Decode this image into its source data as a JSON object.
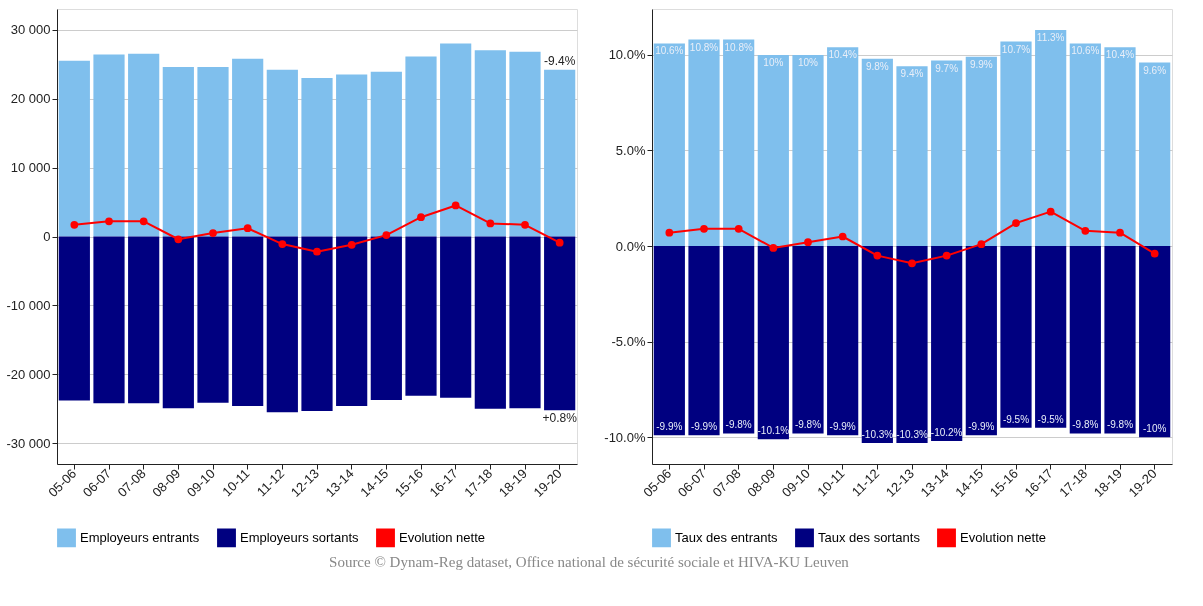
{
  "chart_data": [
    {
      "type": "bar",
      "stacked": true,
      "categories": [
        "05-06",
        "06-07",
        "07-08",
        "08-09",
        "09-10",
        "10-11",
        "11-12",
        "12-13",
        "13-14",
        "14-15",
        "15-16",
        "16-17",
        "17-18",
        "18-19",
        "19-20"
      ],
      "series": [
        {
          "name": "Employeurs entrants",
          "color": "#7fbfed",
          "values": [
            25500,
            26400,
            26500,
            24600,
            24600,
            25800,
            24200,
            23000,
            23500,
            23900,
            26100,
            28000,
            27000,
            26800,
            24200
          ]
        },
        {
          "name": "Employeurs sortants",
          "color": "#000080",
          "values": [
            -23800,
            -24200,
            -24200,
            -24900,
            -24100,
            -24600,
            -25500,
            -25300,
            -24600,
            -23700,
            -23100,
            -23400,
            -25000,
            -24900,
            -25200
          ]
        },
        {
          "name": "Evolution nette",
          "type": "line",
          "color": "#ff0000",
          "values": [
            1700,
            2200,
            2200,
            -400,
            500,
            1200,
            -1100,
            -2200,
            -1200,
            200,
            2800,
            4500,
            1900,
            1700,
            -900
          ]
        }
      ],
      "ylim": [
        -33000,
        33000
      ],
      "yticks": [
        {
          "value": -30000,
          "label": "-30 000"
        },
        {
          "value": -20000,
          "label": "-20 000"
        },
        {
          "value": -10000,
          "label": "-10 000"
        },
        0,
        {
          "value": 10000,
          "label": "10 000"
        },
        {
          "value": 20000,
          "label": "20 000"
        },
        {
          "value": 30000,
          "label": "30 000"
        }
      ],
      "grid": "y",
      "legend": "bottom",
      "marker": "circle",
      "line_style": "solid",
      "annotations": [
        {
          "text": "-9.4%",
          "x": "19-20",
          "y": 24200
        },
        {
          "text": "+0.8%",
          "x": "19-20",
          "y": -25200
        },
        "Source © Dynam-Reg dataset, Office national de sécurité sociale et HIVA-KU Leuven"
      ]
    },
    {
      "type": "bar",
      "stacked": true,
      "categories": [
        "05-06",
        "06-07",
        "07-08",
        "08-09",
        "09-10",
        "10-11",
        "11-12",
        "12-13",
        "13-14",
        "14-15",
        "15-16",
        "16-17",
        "17-18",
        "18-19",
        "19-20"
      ],
      "series": [
        {
          "name": "Taux des entrants",
          "color": "#7fbfed",
          "values": [
            10.6,
            10.8,
            10.8,
            10,
            10,
            10.4,
            9.8,
            9.4,
            9.7,
            9.9,
            10.7,
            11.3,
            10.6,
            10.4,
            9.6
          ],
          "value_labels": [
            "10.6%",
            "10.8%",
            "10.8%",
            "10%",
            "10%",
            "10.4%",
            "9.8%",
            "9.4%",
            "9.7%",
            "9.9%",
            "10.7%",
            "11.3%",
            "10.6%",
            "10.4%",
            "9.6%"
          ]
        },
        {
          "name": "Taux des sortants",
          "color": "#000080",
          "values": [
            -9.9,
            -9.9,
            -9.8,
            -10.1,
            -9.8,
            -9.9,
            -10.3,
            -10.3,
            -10.2,
            -9.9,
            -9.5,
            -9.5,
            -9.8,
            -9.8,
            -10
          ],
          "value_labels": [
            "-9.9%",
            "-9.9%",
            "-9.8%",
            "-10.1%",
            "-9.8%",
            "-9.9%",
            "-10.3%",
            "-10.3%",
            "-10.2%",
            "-9.9%",
            "-9.5%",
            "-9.5%",
            "-9.8%",
            "-9.8%",
            "-10%"
          ]
        },
        {
          "name": "Evolution nette",
          "type": "line",
          "color": "#ff0000",
          "values": [
            0.7,
            0.9,
            0.9,
            -0.1,
            0.2,
            0.5,
            -0.5,
            -0.9,
            -0.5,
            0.1,
            1.2,
            1.8,
            0.8,
            0.7,
            -0.4
          ]
        }
      ],
      "ylim": [
        -11.4,
        12.4
      ],
      "yticks": [
        {
          "value": -10,
          "label": "-10.0%"
        },
        {
          "value": -5,
          "label": "-5.0%"
        },
        {
          "value": 0,
          "label": "0.0%"
        },
        {
          "value": 5,
          "label": "5.0%"
        },
        {
          "value": 10,
          "label": "10.0%"
        }
      ],
      "grid": "y",
      "legend": "bottom",
      "marker": "circle",
      "line_style": "solid"
    }
  ]
}
